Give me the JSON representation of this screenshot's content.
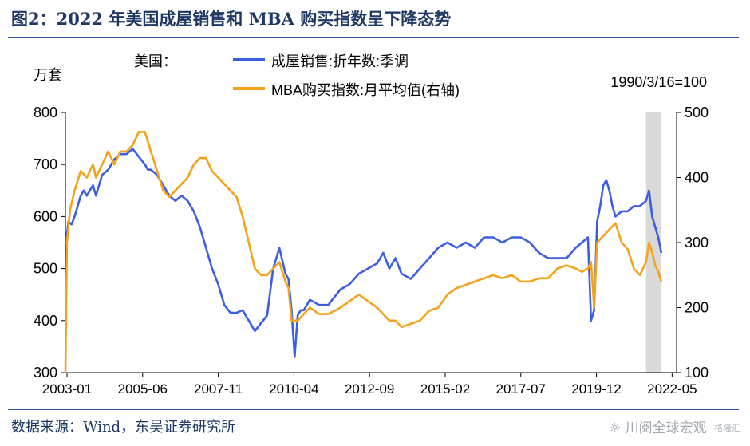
{
  "header": {
    "title": "图2：2022 年美国成屋销售和 MBA 购买指数呈下降态势"
  },
  "footer": {
    "source": "数据来源：Wind，东吴证券研究所",
    "watermark": "川阅全球宏观",
    "watermark_logo": "格隆汇"
  },
  "chart_data": {
    "type": "line",
    "title": "",
    "left_unit": "万套",
    "right_unit": "1990/3/16=100",
    "legend_prefix": "美国：",
    "xlabel": "",
    "ylabel_left": "万套",
    "ylim_left": [
      300,
      800
    ],
    "ylim_right": [
      100,
      500
    ],
    "y_ticks_left": [
      "300",
      "400",
      "500",
      "600",
      "700",
      "800"
    ],
    "y_ticks_right": [
      "100",
      "200",
      "300",
      "400",
      "500"
    ],
    "x_ticks": [
      "2003-01",
      "2005-06",
      "2007-11",
      "2010-04",
      "2012-09",
      "2015-02",
      "2017-07",
      "2019-12",
      "2022-05"
    ],
    "x_range": [
      2003.0,
      2023.0
    ],
    "shaded_region": [
      2022.0,
      2022.5
    ],
    "colors": {
      "series_left": "#3c5fe0",
      "series_right": "#f5a21b",
      "shade": "#d9d9d9",
      "axis": "#000000"
    },
    "series": [
      {
        "name": "成屋销售:折年数:季调",
        "axis": "left",
        "x": [
          2003.0,
          2003.1,
          2003.2,
          2003.3,
          2003.4,
          2003.5,
          2003.6,
          2003.7,
          2003.8,
          2003.9,
          2004.0,
          2004.2,
          2004.4,
          2004.6,
          2004.8,
          2005.0,
          2005.2,
          2005.4,
          2005.6,
          2005.7,
          2005.8,
          2006.0,
          2006.2,
          2006.4,
          2006.6,
          2006.8,
          2007.0,
          2007.2,
          2007.4,
          2007.6,
          2007.8,
          2008.0,
          2008.2,
          2008.4,
          2008.6,
          2008.8,
          2009.0,
          2009.2,
          2009.4,
          2009.6,
          2009.8,
          2009.9,
          2010.0,
          2010.2,
          2010.3,
          2010.4,
          2010.5,
          2010.6,
          2010.7,
          2010.8,
          2011.0,
          2011.3,
          2011.6,
          2012.0,
          2012.3,
          2012.6,
          2012.9,
          2013.2,
          2013.4,
          2013.6,
          2013.8,
          2014.0,
          2014.3,
          2014.6,
          2014.9,
          2015.2,
          2015.5,
          2015.8,
          2016.1,
          2016.4,
          2016.7,
          2017.0,
          2017.3,
          2017.6,
          2017.9,
          2018.2,
          2018.5,
          2018.8,
          2019.1,
          2019.4,
          2019.7,
          2019.9,
          2020.1,
          2020.2,
          2020.3,
          2020.4,
          2020.5,
          2020.6,
          2020.7,
          2020.8,
          2020.9,
          2021.0,
          2021.2,
          2021.4,
          2021.6,
          2021.8,
          2022.0,
          2022.1,
          2022.2,
          2022.3,
          2022.4,
          2022.5
        ],
        "values": [
          545,
          590,
          585,
          600,
          620,
          640,
          650,
          640,
          650,
          660,
          640,
          680,
          690,
          710,
          720,
          720,
          730,
          715,
          700,
          690,
          690,
          680,
          660,
          640,
          630,
          640,
          630,
          610,
          580,
          540,
          500,
          470,
          430,
          415,
          415,
          420,
          400,
          380,
          395,
          410,
          500,
          520,
          540,
          490,
          480,
          420,
          330,
          410,
          420,
          420,
          440,
          430,
          430,
          460,
          470,
          490,
          500,
          510,
          530,
          500,
          520,
          490,
          480,
          500,
          520,
          540,
          550,
          540,
          550,
          540,
          560,
          560,
          550,
          560,
          560,
          550,
          530,
          520,
          520,
          520,
          540,
          550,
          560,
          400,
          420,
          590,
          620,
          660,
          670,
          650,
          620,
          600,
          610,
          610,
          620,
          620,
          630,
          650,
          600,
          580,
          560,
          530
        ]
      },
      {
        "name": "MBA购买指数:月平均值(右轴)",
        "axis": "right",
        "x": [
          2003.0,
          2003.05,
          2003.15,
          2003.3,
          2003.5,
          2003.7,
          2003.9,
          2004.0,
          2004.2,
          2004.4,
          2004.6,
          2004.8,
          2005.0,
          2005.2,
          2005.4,
          2005.6,
          2005.8,
          2006.0,
          2006.2,
          2006.4,
          2006.6,
          2006.8,
          2007.0,
          2007.2,
          2007.4,
          2007.6,
          2007.8,
          2008.0,
          2008.2,
          2008.4,
          2008.6,
          2008.8,
          2009.0,
          2009.2,
          2009.4,
          2009.6,
          2009.8,
          2010.0,
          2010.2,
          2010.3,
          2010.4,
          2010.6,
          2010.8,
          2011.0,
          2011.3,
          2011.6,
          2012.0,
          2012.3,
          2012.6,
          2012.9,
          2013.2,
          2013.4,
          2013.6,
          2013.8,
          2014.0,
          2014.3,
          2014.6,
          2014.9,
          2015.2,
          2015.5,
          2015.8,
          2016.1,
          2016.4,
          2016.7,
          2017.0,
          2017.3,
          2017.6,
          2017.9,
          2018.2,
          2018.5,
          2018.8,
          2019.1,
          2019.4,
          2019.7,
          2019.9,
          2020.1,
          2020.2,
          2020.3,
          2020.4,
          2020.6,
          2020.8,
          2021.0,
          2021.2,
          2021.4,
          2021.6,
          2021.8,
          2022.0,
          2022.1,
          2022.2,
          2022.3,
          2022.4,
          2022.5
        ],
        "values": [
          100,
          300,
          350,
          380,
          410,
          400,
          420,
          400,
          420,
          440,
          420,
          440,
          440,
          450,
          470,
          470,
          440,
          410,
          380,
          370,
          380,
          390,
          400,
          420,
          430,
          430,
          410,
          400,
          390,
          380,
          370,
          340,
          300,
          260,
          250,
          250,
          260,
          270,
          240,
          230,
          180,
          180,
          190,
          200,
          190,
          190,
          200,
          210,
          220,
          210,
          200,
          190,
          180,
          180,
          170,
          175,
          180,
          195,
          200,
          220,
          230,
          235,
          240,
          245,
          250,
          245,
          250,
          240,
          240,
          245,
          245,
          260,
          265,
          260,
          255,
          260,
          270,
          200,
          300,
          310,
          320,
          330,
          300,
          290,
          260,
          250,
          270,
          300,
          285,
          265,
          255,
          240
        ]
      }
    ]
  }
}
